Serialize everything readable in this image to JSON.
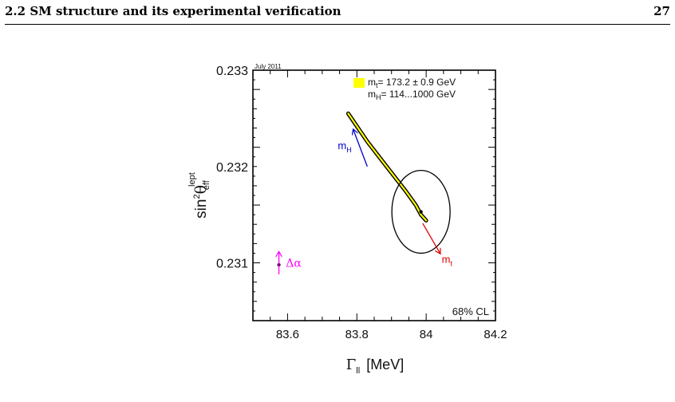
{
  "header": {
    "section_title": "2.2 SM structure and its experimental verification",
    "page_number": "27"
  },
  "chart_data": {
    "type": "scatter",
    "date_label": "July 2011",
    "xlabel_symbol": "Γ",
    "xlabel_sub": "ll",
    "xlabel_unit": "[MeV]",
    "ylabel_main": "sin",
    "ylabel_sup2": "2",
    "ylabel_theta": "θ",
    "ylabel_sub": "eff",
    "ylabel_sup": "lept",
    "xlim": [
      83.5,
      84.2
    ],
    "ylim": [
      0.2304,
      0.233
    ],
    "xticks": [
      "83.6",
      "83.8",
      "84",
      "84.2"
    ],
    "xtick_values": [
      83.6,
      83.8,
      84.0,
      84.2
    ],
    "yticks": [
      "0.233",
      "0.232",
      "0.231"
    ],
    "ytick_values": [
      0.233,
      0.232,
      0.231
    ],
    "legend": {
      "swatch_color": "#ffff00",
      "line1_prefix": "m",
      "line1_sub": "t",
      "line1_rest": "= 173.2 ± 0.9 GeV",
      "line2_prefix": "m",
      "line2_sub": "H",
      "line2_rest": "= 114...1000 GeV"
    },
    "measurement": {
      "x": 83.985,
      "y": 0.23153,
      "ellipse_rx": 0.084,
      "ellipse_ry": 0.00043,
      "color": "#000000"
    },
    "sm_band": [
      {
        "x": 83.775,
        "y": 0.23255
      },
      {
        "x": 83.83,
        "y": 0.23226
      },
      {
        "x": 83.89,
        "y": 0.23198
      },
      {
        "x": 83.94,
        "y": 0.23175
      },
      {
        "x": 83.97,
        "y": 0.2316
      },
      {
        "x": 83.985,
        "y": 0.2315
      },
      {
        "x": 84.0,
        "y": 0.23144
      }
    ],
    "band_color": "#ffff00",
    "arrows": [
      {
        "label_main": "m",
        "label_sub": "H",
        "color": "#0000cc",
        "from": [
          83.83,
          0.232
        ],
        "to": [
          83.79,
          0.23238
        ],
        "label_at": [
          83.745,
          0.23218
        ]
      },
      {
        "label_main": "m",
        "label_sub": "t",
        "color": "#e00000",
        "from": [
          83.99,
          0.23141
        ],
        "to": [
          84.04,
          0.2311
        ],
        "label_at": [
          84.045,
          0.231
        ]
      },
      {
        "label_main": "Δα",
        "label_sub": "",
        "color": "#ff00ff",
        "from": [
          83.575,
          0.23088
        ],
        "to": [
          83.575,
          0.23111
        ],
        "label_at": [
          83.595,
          0.23096
        ]
      }
    ],
    "sm_ref_point": {
      "x": 83.575,
      "y": 0.23098
    },
    "cl_label": "68% CL",
    "grid": false
  }
}
